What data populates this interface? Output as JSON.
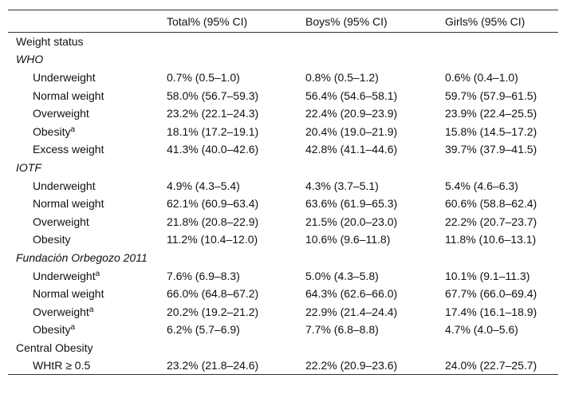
{
  "table": {
    "header": [
      "Total% (95% CI)",
      "Boys% (95% CI)",
      "Girls% (95% CI)"
    ],
    "rows": [
      {
        "kind": "group",
        "label": "Weight status"
      },
      {
        "kind": "subgroup",
        "label": "WHO"
      },
      {
        "kind": "item",
        "label": "Underweight",
        "cells": [
          "0.7% (0.5–1.0)",
          "0.8% (0.5–1.2)",
          "0.6% (0.4–1.0)"
        ]
      },
      {
        "kind": "item",
        "label": "Normal weight",
        "cells": [
          "58.0% (56.7–59.3)",
          "56.4% (54.6–58.1)",
          "59.7% (57.9–61.5)"
        ]
      },
      {
        "kind": "item",
        "label": "Overweight",
        "cells": [
          "23.2% (22.1–24.3)",
          "22.4% (20.9–23.9)",
          "23.9% (22.4–25.5)"
        ]
      },
      {
        "kind": "item",
        "label": "Obesity",
        "sup": "a",
        "cells": [
          "18.1% (17.2–19.1)",
          "20.4% (19.0–21.9)",
          "15.8% (14.5–17.2)"
        ]
      },
      {
        "kind": "item",
        "label": "Excess weight",
        "cells": [
          "41.3% (40.0–42.6)",
          "42.8% (41.1–44.6)",
          "39.7% (37.9–41.5)"
        ]
      },
      {
        "kind": "subgroup",
        "label": "IOTF"
      },
      {
        "kind": "item",
        "label": "Underweight",
        "cells": [
          "4.9% (4.3–5.4)",
          "4.3% (3.7–5.1)",
          "5.4% (4.6–6.3)"
        ]
      },
      {
        "kind": "item",
        "label": "Normal weight",
        "cells": [
          "62.1% (60.9–63.4)",
          "63.6% (61.9–65.3)",
          "60.6% (58.8–62.4)"
        ]
      },
      {
        "kind": "item",
        "label": "Overweight",
        "cells": [
          "21.8% (20.8–22.9)",
          "21.5% (20.0–23.0)",
          "22.2% (20.7–23.7)"
        ]
      },
      {
        "kind": "item",
        "label": "Obesity",
        "cells": [
          "11.2% (10.4–12.0)",
          "10.6% (9.6–11.8)",
          "11.8% (10.6–13.1)"
        ]
      },
      {
        "kind": "subgroup",
        "label": "Fundación Orbegozo 2011"
      },
      {
        "kind": "item",
        "label": "Underweight",
        "sup": "a",
        "cells": [
          "7.6% (6.9–8.3)",
          "5.0% (4.3–5.8)",
          "10.1% (9.1–11.3)"
        ]
      },
      {
        "kind": "item",
        "label": "Normal weight",
        "cells": [
          "66.0% (64.8–67.2)",
          "64.3% (62.6–66.0)",
          "67.7% (66.0–69.4)"
        ]
      },
      {
        "kind": "item",
        "label": "Overweight",
        "sup": "a",
        "cells": [
          "20.2% (19.2–21.2)",
          "22.9% (21.4–24.4)",
          "17.4% (16.1–18.9)"
        ]
      },
      {
        "kind": "item",
        "label": "Obesity",
        "sup": "a",
        "cells": [
          "6.2% (5.7–6.9)",
          "7.7% (6.8–8.8)",
          "4.7% (4.0–5.6)"
        ]
      },
      {
        "kind": "group",
        "label": "Central Obesity"
      },
      {
        "kind": "item",
        "label": "WHtR ≥ 0.5",
        "cells": [
          "23.2% (21.8–24.6)",
          "22.2% (20.9–23.6)",
          "24.0% (22.7–25.7)"
        ]
      }
    ]
  }
}
